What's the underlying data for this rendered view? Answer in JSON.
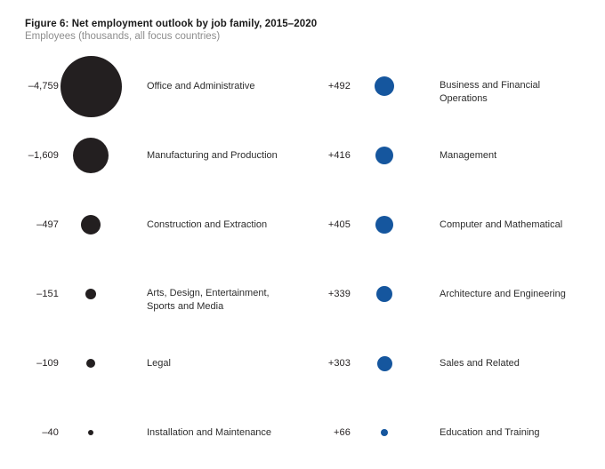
{
  "header": {
    "title": "Figure 6: Net employment outlook by job family, 2015–2020",
    "subtitle": "Employees (thousands, all focus countries)"
  },
  "colors": {
    "negative_bubble": "#231f20",
    "positive_bubble": "#15569e",
    "title_text": "#1a1a1a",
    "subtitle_text": "#8d8d8d"
  },
  "chart_data": {
    "type": "bubble",
    "title": "Figure 6: Net employment outlook by job family, 2015–2020",
    "subtitle": "Employees (thousands, all focus countries)",
    "units": "thousands of employees, all focus countries",
    "layout": "two columns: negative outlook (black bubbles, left), positive outlook (blue bubbles, right); bubble area proportional to value, diameter_px ≈ sqrt(|value|)",
    "rows": [
      {
        "left": {
          "value": -4759,
          "value_label": "–4,759",
          "label": "Office and Administrative"
        },
        "right": {
          "value": 492,
          "value_label": "+492",
          "label": "Business and Financial\nOperations"
        }
      },
      {
        "left": {
          "value": -1609,
          "value_label": "–1,609",
          "label": "Manufacturing and Production"
        },
        "right": {
          "value": 416,
          "value_label": "+416",
          "label": "Management"
        }
      },
      {
        "left": {
          "value": -497,
          "value_label": "–497",
          "label": "Construction and Extraction"
        },
        "right": {
          "value": 405,
          "value_label": "+405",
          "label": "Computer and Mathematical"
        }
      },
      {
        "left": {
          "value": -151,
          "value_label": "–151",
          "label": "Arts, Design, Entertainment,\nSports and Media"
        },
        "right": {
          "value": 339,
          "value_label": "+339",
          "label": "Architecture and Engineering"
        }
      },
      {
        "left": {
          "value": -109,
          "value_label": "–109",
          "label": "Legal"
        },
        "right": {
          "value": 303,
          "value_label": "+303",
          "label": "Sales and Related"
        }
      },
      {
        "left": {
          "value": -40,
          "value_label": "–40",
          "label": "Installation and Maintenance"
        },
        "right": {
          "value": 66,
          "value_label": "+66",
          "label": "Education and Training"
        }
      }
    ]
  }
}
